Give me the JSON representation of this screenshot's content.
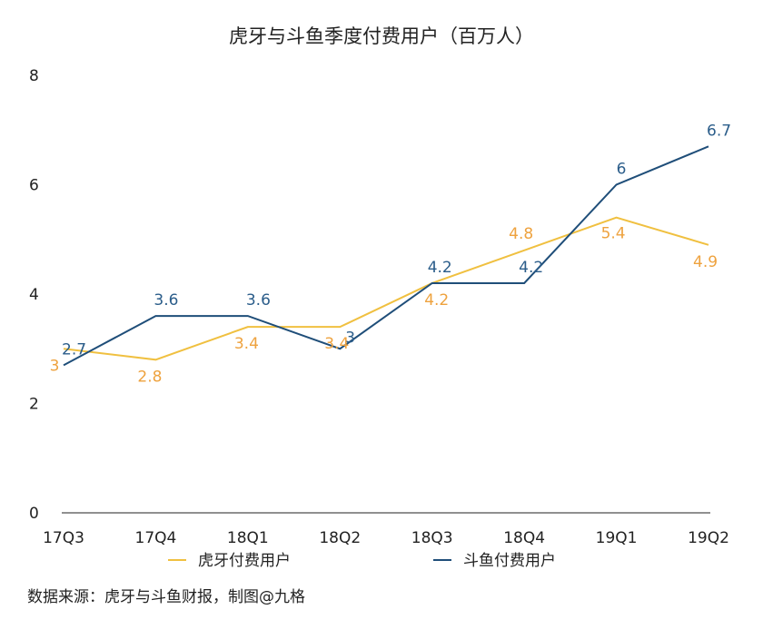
{
  "chart_data": {
    "type": "line",
    "title": "虎牙与斗鱼季度付费用户（百万人）",
    "categories": [
      "17Q3",
      "17Q4",
      "18Q1",
      "18Q2",
      "18Q3",
      "18Q4",
      "19Q1",
      "19Q2"
    ],
    "ylim": [
      0,
      8
    ],
    "yticks": [
      "0",
      "2",
      "4",
      "6",
      "8"
    ],
    "grid": false,
    "legend_position": "bottom",
    "series": [
      {
        "name": "虎牙付费用户",
        "values": [
          3,
          2.8,
          3.4,
          3.4,
          4.2,
          4.8,
          5.4,
          4.9
        ],
        "labels": [
          "3",
          "2.8",
          "3.4",
          "3.4",
          "4.2",
          "4.8",
          "5.4",
          "4.9"
        ],
        "color": "#f0c040",
        "label_color": "#eea23e"
      },
      {
        "name": "斗鱼付费用户",
        "values": [
          2.7,
          3.6,
          3.6,
          3,
          4.2,
          4.2,
          6,
          6.7
        ],
        "labels": [
          "2.7",
          "3.6",
          "3.6",
          "3",
          "4.2",
          "4.2",
          "6",
          "6.7"
        ],
        "color": "#1f4e79",
        "label_color": "#2b5d8a"
      }
    ]
  },
  "source_note": "数据来源：虎牙与斗鱼财报，制图@九格"
}
